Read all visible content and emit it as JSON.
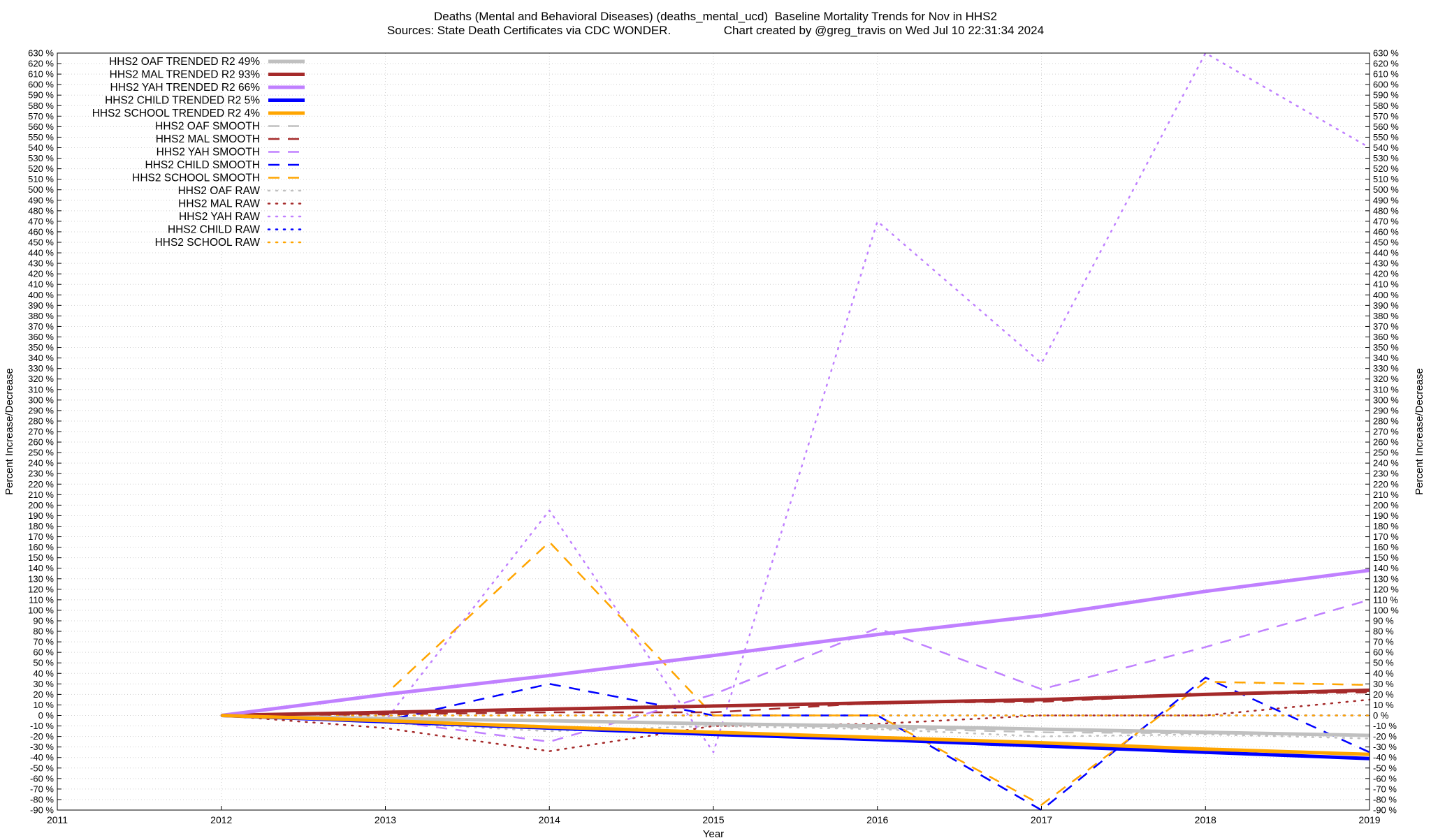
{
  "chart_data": {
    "type": "line",
    "title_line1": "Deaths (Mental and Behavioral Diseases) (deaths_mental_ucd)  Baseline Mortality Trends for Nov in HHS2",
    "title_line2": "Sources: State Death Certificates via CDC WONDER.                Chart created by @greg_travis on Wed Jul 10 22:31:34 2024",
    "xlabel": "Year",
    "ylabel": "Percent Increase/Decrease",
    "ylabel_right": "Percent Increase/Decrease",
    "xlim": [
      2011,
      2019
    ],
    "ylim": [
      -90,
      630
    ],
    "x_ticks": [
      2011,
      2012,
      2013,
      2014,
      2015,
      2016,
      2017,
      2018,
      2019
    ],
    "y_ticks_step": 10,
    "y_tick_suffix": " %",
    "grid": true,
    "legend_position": "top-left",
    "series": [
      {
        "name": "HHS2 OAF TRENDED R2  49%",
        "style": "solid",
        "width": 5,
        "color": "#c0c0c0",
        "x": [
          2012,
          2013,
          2014,
          2015,
          2016,
          2017,
          2018,
          2019
        ],
        "y": [
          0,
          -3,
          -5,
          -8,
          -10,
          -13,
          -16,
          -19
        ]
      },
      {
        "name": "HHS2 MAL TRENDED R2  93%",
        "style": "solid",
        "width": 5,
        "color": "#a52a2a",
        "x": [
          2012,
          2013,
          2014,
          2015,
          2016,
          2017,
          2018,
          2019
        ],
        "y": [
          0,
          3,
          6,
          9,
          12,
          15,
          20,
          24
        ]
      },
      {
        "name": "HHS2 YAH TRENDED R2  66%",
        "style": "solid",
        "width": 5,
        "color": "#c080ff",
        "x": [
          2012,
          2013,
          2014,
          2015,
          2016,
          2017,
          2018,
          2019
        ],
        "y": [
          0,
          20,
          38,
          57,
          77,
          95,
          118,
          138
        ]
      },
      {
        "name": "HHS2 CHILD TRENDED R2   5%",
        "style": "solid",
        "width": 5,
        "color": "#0000ff",
        "x": [
          2012,
          2013,
          2014,
          2015,
          2016,
          2017,
          2018,
          2019
        ],
        "y": [
          0,
          -6,
          -12,
          -18,
          -23,
          -29,
          -35,
          -41
        ]
      },
      {
        "name": "HHS2 SCHOOL TRENDED R2   4%",
        "style": "solid",
        "width": 5,
        "color": "#ffa500",
        "x": [
          2012,
          2013,
          2014,
          2015,
          2016,
          2017,
          2018,
          2019
        ],
        "y": [
          0,
          -5,
          -11,
          -16,
          -21,
          -26,
          -32,
          -37
        ]
      },
      {
        "name": "HHS2 OAF SMOOTH",
        "style": "dashed",
        "width": 2.5,
        "color": "#c0c0c0",
        "x": [
          2012,
          2013,
          2014,
          2015,
          2016,
          2017,
          2018,
          2019
        ],
        "y": [
          0,
          -3,
          -5,
          -8,
          -12,
          -16,
          -17,
          -19
        ]
      },
      {
        "name": "HHS2 MAL SMOOTH",
        "style": "dashed",
        "width": 2.5,
        "color": "#a52a2a",
        "x": [
          2012,
          2013,
          2014,
          2015,
          2016,
          2017,
          2018,
          2019
        ],
        "y": [
          0,
          1,
          3,
          3,
          12,
          13,
          20,
          22
        ]
      },
      {
        "name": "HHS2 YAH SMOOTH",
        "style": "dashed",
        "width": 2.5,
        "color": "#c080ff",
        "x": [
          2012,
          2013,
          2014,
          2015,
          2016,
          2017,
          2018,
          2019
        ],
        "y": [
          0,
          -5,
          -25,
          20,
          83,
          25,
          65,
          110
        ]
      },
      {
        "name": "HHS2 CHILD SMOOTH",
        "style": "dashed",
        "width": 2.5,
        "color": "#0000ff",
        "x": [
          2012,
          2013,
          2014,
          2015,
          2016,
          2017,
          2018,
          2019
        ],
        "y": [
          0,
          -5,
          30,
          0,
          0,
          -95,
          36,
          -35
        ]
      },
      {
        "name": "HHS2 SCHOOL SMOOTH",
        "style": "dashed",
        "width": 2.5,
        "color": "#ffa500",
        "x": [
          2012,
          2013,
          2014,
          2015,
          2016,
          2017,
          2018,
          2019
        ],
        "y": [
          0,
          20,
          165,
          0,
          0,
          -85,
          32,
          29
        ]
      },
      {
        "name": "HHS2 OAF RAW",
        "style": "dotted",
        "width": 2.5,
        "color": "#c0c0c0",
        "x": [
          2012,
          2013,
          2014,
          2015,
          2016,
          2017,
          2018,
          2019
        ],
        "y": [
          0,
          -7,
          -15,
          -10,
          -13,
          -20,
          -18,
          -22
        ]
      },
      {
        "name": "HHS2 MAL RAW",
        "style": "dotted",
        "width": 2.5,
        "color": "#a52a2a",
        "x": [
          2012,
          2013,
          2014,
          2015,
          2016,
          2017,
          2018,
          2019
        ],
        "y": [
          0,
          -12,
          -34,
          -10,
          -8,
          0,
          0,
          15
        ]
      },
      {
        "name": "HHS2 YAH RAW",
        "style": "dotted",
        "width": 2.5,
        "color": "#c080ff",
        "x": [
          2012,
          2013,
          2014,
          2015,
          2016,
          2017,
          2018,
          2019
        ],
        "y": [
          0,
          -5,
          195,
          -35,
          470,
          335,
          630,
          540
        ]
      },
      {
        "name": "HHS2 CHILD RAW",
        "style": "dotted",
        "width": 2.5,
        "color": "#0000ff",
        "x": [
          2012,
          2013,
          2014,
          2015,
          2016,
          2017,
          2018,
          2019
        ],
        "y": [
          0,
          0,
          0,
          0,
          0,
          0,
          0,
          0
        ]
      },
      {
        "name": "HHS2 SCHOOL RAW",
        "style": "dotted",
        "width": 2.5,
        "color": "#ffa500",
        "x": [
          2012,
          2013,
          2014,
          2015,
          2016,
          2017,
          2018,
          2019
        ],
        "y": [
          0,
          0,
          0,
          0,
          0,
          0,
          0,
          0
        ]
      }
    ]
  }
}
